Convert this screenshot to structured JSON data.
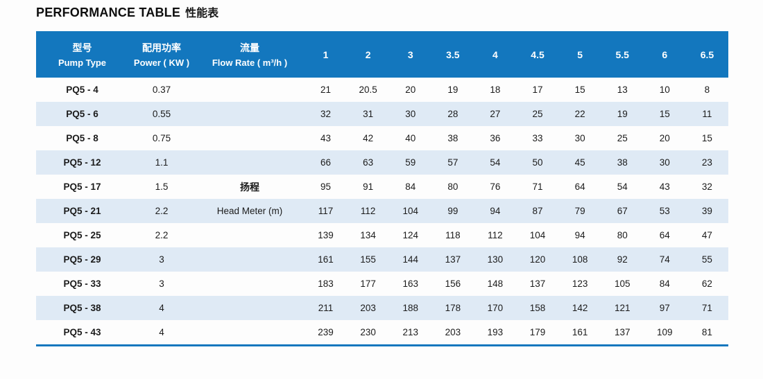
{
  "page": {
    "title_en": "PERFORMANCE TABLE",
    "title_zh": "性能表"
  },
  "table": {
    "header": {
      "pump_type": {
        "zh": "型号",
        "en": "Pump Type"
      },
      "power": {
        "zh": "配用功率",
        "en": "Power ( KW )"
      },
      "flow_rate": {
        "zh": "流量",
        "en": "Flow Rate ( m³/h )"
      },
      "flow_values": [
        "1",
        "2",
        "3",
        "3.5",
        "4",
        "4.5",
        "5",
        "5.5",
        "6",
        "6.5"
      ]
    },
    "rows": [
      {
        "pump_type": "PQ5 - 4",
        "power": "0.37",
        "flow_label": "",
        "heads": [
          "21",
          "20.5",
          "20",
          "19",
          "18",
          "17",
          "15",
          "13",
          "10",
          "8"
        ]
      },
      {
        "pump_type": "PQ5 - 6",
        "power": "0.55",
        "flow_label": "",
        "heads": [
          "32",
          "31",
          "30",
          "28",
          "27",
          "25",
          "22",
          "19",
          "15",
          "11"
        ]
      },
      {
        "pump_type": "PQ5 - 8",
        "power": "0.75",
        "flow_label": "",
        "heads": [
          "43",
          "42",
          "40",
          "38",
          "36",
          "33",
          "30",
          "25",
          "20",
          "15"
        ]
      },
      {
        "pump_type": "PQ5 - 12",
        "power": "1.1",
        "flow_label": "",
        "heads": [
          "66",
          "63",
          "59",
          "57",
          "54",
          "50",
          "45",
          "38",
          "30",
          "23"
        ]
      },
      {
        "pump_type": "PQ5 - 17",
        "power": "1.5",
        "flow_label": "扬程",
        "heads": [
          "95",
          "91",
          "84",
          "80",
          "76",
          "71",
          "64",
          "54",
          "43",
          "32"
        ]
      },
      {
        "pump_type": "PQ5 - 21",
        "power": "2.2",
        "flow_label": "Head Meter (m)",
        "heads": [
          "117",
          "112",
          "104",
          "99",
          "94",
          "87",
          "79",
          "67",
          "53",
          "39"
        ]
      },
      {
        "pump_type": "PQ5 - 25",
        "power": "2.2",
        "flow_label": "",
        "heads": [
          "139",
          "134",
          "124",
          "118",
          "112",
          "104",
          "94",
          "80",
          "64",
          "47"
        ]
      },
      {
        "pump_type": "PQ5 - 29",
        "power": "3",
        "flow_label": "",
        "heads": [
          "161",
          "155",
          "144",
          "137",
          "130",
          "120",
          "108",
          "92",
          "74",
          "55"
        ]
      },
      {
        "pump_type": "PQ5 - 33",
        "power": "3",
        "flow_label": "",
        "heads": [
          "183",
          "177",
          "163",
          "156",
          "148",
          "137",
          "123",
          "105",
          "84",
          "62"
        ]
      },
      {
        "pump_type": "PQ5 - 38",
        "power": "4",
        "flow_label": "",
        "heads": [
          "211",
          "203",
          "188",
          "178",
          "170",
          "158",
          "142",
          "121",
          "97",
          "71"
        ]
      },
      {
        "pump_type": "PQ5 - 43",
        "power": "4",
        "flow_label": "",
        "heads": [
          "239",
          "230",
          "213",
          "203",
          "193",
          "179",
          "161",
          "137",
          "109",
          "81"
        ]
      }
    ],
    "colors": {
      "header_bg": "#1377be",
      "header_text": "#ffffff",
      "row_alt_bg": "#dfeaf5",
      "bottom_border": "#1377be",
      "body_text": "#1b1b1b"
    }
  },
  "chart_data": {
    "type": "table",
    "title": "PERFORMANCE TABLE 性能表",
    "x_label": "流量 Flow Rate ( m³/h )",
    "x": [
      1,
      2,
      3,
      3.5,
      4,
      4.5,
      5,
      5.5,
      6,
      6.5
    ],
    "value_label": "扬程 Head Meter (m)",
    "series": [
      {
        "name": "PQ5 - 4",
        "power_kw": 0.37,
        "values": [
          21,
          20.5,
          20,
          19,
          18,
          17,
          15,
          13,
          10,
          8
        ]
      },
      {
        "name": "PQ5 - 6",
        "power_kw": 0.55,
        "values": [
          32,
          31,
          30,
          28,
          27,
          25,
          22,
          19,
          15,
          11
        ]
      },
      {
        "name": "PQ5 - 8",
        "power_kw": 0.75,
        "values": [
          43,
          42,
          40,
          38,
          36,
          33,
          30,
          25,
          20,
          15
        ]
      },
      {
        "name": "PQ5 - 12",
        "power_kw": 1.1,
        "values": [
          66,
          63,
          59,
          57,
          54,
          50,
          45,
          38,
          30,
          23
        ]
      },
      {
        "name": "PQ5 - 17",
        "power_kw": 1.5,
        "values": [
          95,
          91,
          84,
          80,
          76,
          71,
          64,
          54,
          43,
          32
        ]
      },
      {
        "name": "PQ5 - 21",
        "power_kw": 2.2,
        "values": [
          117,
          112,
          104,
          99,
          94,
          87,
          79,
          67,
          53,
          39
        ]
      },
      {
        "name": "PQ5 - 25",
        "power_kw": 2.2,
        "values": [
          139,
          134,
          124,
          118,
          112,
          104,
          94,
          80,
          64,
          47
        ]
      },
      {
        "name": "PQ5 - 29",
        "power_kw": 3,
        "values": [
          161,
          155,
          144,
          137,
          130,
          120,
          108,
          92,
          74,
          55
        ]
      },
      {
        "name": "PQ5 - 33",
        "power_kw": 3,
        "values": [
          183,
          177,
          163,
          156,
          148,
          137,
          123,
          105,
          84,
          62
        ]
      },
      {
        "name": "PQ5 - 38",
        "power_kw": 4,
        "values": [
          211,
          203,
          188,
          178,
          170,
          158,
          142,
          121,
          97,
          71
        ]
      },
      {
        "name": "PQ5 - 43",
        "power_kw": 4,
        "values": [
          239,
          230,
          213,
          203,
          193,
          179,
          161,
          137,
          109,
          81
        ]
      }
    ]
  }
}
